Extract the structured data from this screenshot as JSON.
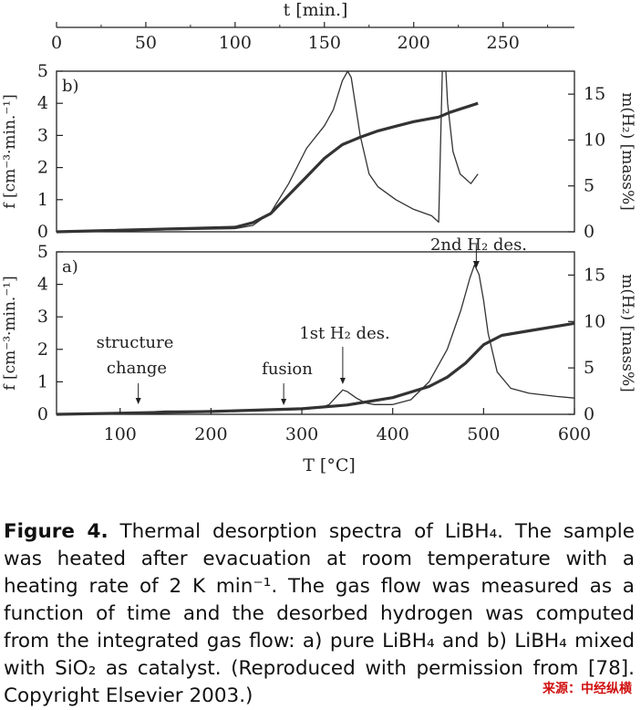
{
  "chart_data": [
    {
      "panel": "b",
      "type": "line",
      "panel_label": "b)",
      "top_axis_label": "t [min.]",
      "top_ticks": [
        0,
        50,
        100,
        150,
        200,
        250
      ],
      "ylabel_left": "f [cm⁻³·min.⁻¹]",
      "ylabel_right": "m(H₂) [mass%]",
      "left_ticks": [
        0,
        1,
        2,
        3,
        4,
        5
      ],
      "right_ticks": [
        0,
        5,
        10,
        15
      ],
      "ylim_left": [
        0,
        5
      ],
      "ylim_right": [
        0,
        17.5
      ],
      "xlim_top": [
        0,
        290
      ],
      "annotation": "2nd H₂ des.",
      "series": [
        {
          "axis": "left",
          "values": [
            [
              0,
              0
            ],
            [
              50,
              0.05
            ],
            [
              100,
              0.1
            ],
            [
              110,
              0.2
            ],
            [
              120,
              0.6
            ],
            [
              130,
              1.5
            ],
            [
              140,
              2.6
            ],
            [
              150,
              3.3
            ],
            [
              155,
              3.8
            ],
            [
              160,
              4.7
            ],
            [
              163,
              5.0
            ],
            [
              165,
              4.8
            ],
            [
              170,
              3.0
            ],
            [
              175,
              1.8
            ],
            [
              180,
              1.4
            ],
            [
              190,
              1.0
            ],
            [
              200,
              0.7
            ],
            [
              210,
              0.5
            ],
            [
              214,
              0.3
            ],
            [
              216,
              5.0
            ],
            [
              218,
              5.0
            ],
            [
              219,
              4.0
            ],
            [
              222,
              2.5
            ],
            [
              226,
              1.8
            ],
            [
              232,
              1.5
            ],
            [
              236,
              1.8
            ]
          ]
        },
        {
          "axis": "right",
          "values": [
            [
              0,
              0
            ],
            [
              100,
              0.5
            ],
            [
              110,
              1.0
            ],
            [
              120,
              2.0
            ],
            [
              130,
              4.0
            ],
            [
              140,
              6.0
            ],
            [
              150,
              8.0
            ],
            [
              160,
              9.5
            ],
            [
              170,
              10.3
            ],
            [
              180,
              11.0
            ],
            [
              190,
              11.5
            ],
            [
              200,
              12.0
            ],
            [
              214,
              12.5
            ],
            [
              220,
              13.0
            ],
            [
              236,
              14.0
            ]
          ]
        }
      ]
    },
    {
      "panel": "a",
      "type": "line",
      "panel_label": "a)",
      "xlabel": "T [°C]",
      "x_ticks": [
        100,
        200,
        300,
        400,
        500,
        600
      ],
      "xlim": [
        30,
        600
      ],
      "ylabel_left": "f [cm⁻³·min.⁻¹]",
      "ylabel_right": "m(H₂) [mass%]",
      "left_ticks": [
        0,
        1,
        2,
        3,
        4,
        5
      ],
      "right_ticks": [
        0,
        5,
        10,
        15
      ],
      "ylim_left": [
        0,
        5
      ],
      "ylim_right": [
        0,
        17.5
      ],
      "annotations": [
        {
          "text_lines": [
            "structure",
            "change"
          ],
          "x": 120
        },
        {
          "text_lines": [
            "fusion"
          ],
          "x": 280
        },
        {
          "text_lines": [
            "1st H₂ des."
          ],
          "x": 345
        },
        {
          "text_lines": [
            ""
          ],
          "x": 492
        }
      ],
      "series": [
        {
          "axis": "left",
          "values": [
            [
              30,
              0
            ],
            [
              100,
              0.02
            ],
            [
              150,
              0.1
            ],
            [
              200,
              0.1
            ],
            [
              250,
              0.12
            ],
            [
              300,
              0.15
            ],
            [
              320,
              0.2
            ],
            [
              330,
              0.3
            ],
            [
              340,
              0.6
            ],
            [
              345,
              0.75
            ],
            [
              350,
              0.7
            ],
            [
              360,
              0.5
            ],
            [
              370,
              0.35
            ],
            [
              380,
              0.3
            ],
            [
              400,
              0.3
            ],
            [
              420,
              0.45
            ],
            [
              440,
              1.0
            ],
            [
              460,
              2.0
            ],
            [
              475,
              3.2
            ],
            [
              485,
              4.2
            ],
            [
              490,
              4.6
            ],
            [
              495,
              4.3
            ],
            [
              500,
              3.5
            ],
            [
              505,
              2.5
            ],
            [
              515,
              1.3
            ],
            [
              530,
              0.8
            ],
            [
              550,
              0.65
            ],
            [
              580,
              0.55
            ],
            [
              600,
              0.5
            ]
          ]
        },
        {
          "axis": "right",
          "values": [
            [
              30,
              0
            ],
            [
              200,
              0.3
            ],
            [
              300,
              0.6
            ],
            [
              350,
              1.0
            ],
            [
              400,
              1.8
            ],
            [
              440,
              3.0
            ],
            [
              460,
              4.0
            ],
            [
              480,
              5.5
            ],
            [
              500,
              7.5
            ],
            [
              520,
              8.5
            ],
            [
              550,
              9.0
            ],
            [
              600,
              9.8
            ]
          ]
        }
      ]
    }
  ],
  "caption": {
    "label": "Figure 4.",
    "text": " Thermal desorption spectra of LiBH₄. The sample was heated after evacuation at room temperature with a heating rate of 2 K min⁻¹. The gas flow was measured as a function of time and the desorbed hydrogen was computed from the integrated gas flow: a) pure LiBH₄ and b) LiBH₄ mixed with SiO₂ as catalyst. (Reproduced with permission from [78]. Copyright Elsevier 2003.)"
  },
  "source": "来源：中经纵横"
}
